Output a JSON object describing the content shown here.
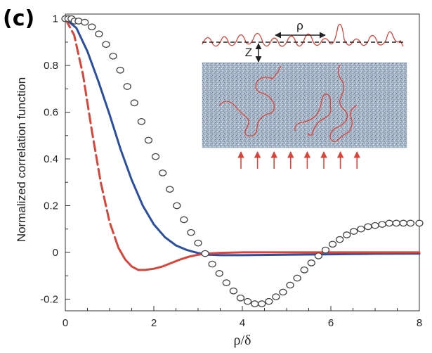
{
  "panel_label": "(c)",
  "chart_data": {
    "type": "line",
    "title": "",
    "xlabel": "ρ/δ",
    "ylabel": "Normalized correlation function",
    "xlim": [
      0,
      8
    ],
    "ylim": [
      -0.25,
      1.02
    ],
    "x_ticks": [
      0,
      2,
      4,
      6,
      8
    ],
    "x_tick_labels": [
      "0",
      "2",
      "4",
      "6",
      "8"
    ],
    "y_ticks": [
      -0.2,
      0,
      0.2,
      0.4,
      0.6,
      0.8,
      1
    ],
    "y_tick_labels": [
      "-0.2",
      "0",
      "0.2",
      "0.4",
      "0.6",
      "0.8",
      "1"
    ],
    "grid": false,
    "series": [
      {
        "name": "blue solid",
        "style": "solid",
        "color": "#2a4fa0",
        "x": [
          0,
          0.25,
          0.5,
          0.75,
          1.0,
          1.25,
          1.5,
          1.75,
          2.0,
          2.25,
          2.5,
          2.75,
          3.0,
          3.25,
          3.5,
          4,
          5,
          6,
          7,
          8
        ],
        "y": [
          1.0,
          0.96,
          0.86,
          0.73,
          0.59,
          0.44,
          0.31,
          0.2,
          0.12,
          0.065,
          0.03,
          0.01,
          -0.003,
          -0.01,
          -0.012,
          -0.012,
          -0.01,
          -0.008,
          -0.006,
          -0.005
        ]
      },
      {
        "name": "red dashed",
        "style": "dashed",
        "color": "#d9443a",
        "x": [
          0,
          0.2,
          0.4,
          0.6,
          0.8,
          1.0,
          1.2
        ],
        "y": [
          1.0,
          0.93,
          0.76,
          0.52,
          0.3,
          0.13,
          0.02
        ]
      },
      {
        "name": "red solid",
        "style": "solid",
        "color": "#d9443a",
        "x": [
          1.2,
          1.35,
          1.5,
          1.65,
          1.8,
          2.0,
          2.2,
          2.4,
          2.6,
          2.8,
          3.0,
          3.2,
          3.5,
          4,
          5,
          6,
          7,
          8
        ],
        "y": [
          0.02,
          -0.03,
          -0.06,
          -0.075,
          -0.075,
          -0.07,
          -0.06,
          -0.045,
          -0.03,
          -0.018,
          -0.01,
          -0.005,
          -0.002,
          0.0,
          0.0,
          0.0,
          0.0,
          0.0
        ]
      },
      {
        "name": "open circles",
        "style": "markers",
        "color": "#444444",
        "x": [
          0,
          0.07,
          0.14,
          0.21,
          0.3,
          0.44,
          0.6,
          0.76,
          0.92,
          1.08,
          1.24,
          1.4,
          1.56,
          1.72,
          1.88,
          2.04,
          2.2,
          2.36,
          2.52,
          2.68,
          2.84,
          3.0,
          3.16,
          3.32,
          3.48,
          3.64,
          3.8,
          3.96,
          4.12,
          4.28,
          4.44,
          4.6,
          4.76,
          4.92,
          5.08,
          5.24,
          5.4,
          5.56,
          5.72,
          5.88,
          6.04,
          6.2,
          6.36,
          6.52,
          6.68,
          6.84,
          7.0,
          7.16,
          7.32,
          7.48,
          7.64,
          7.8,
          8.0
        ],
        "y": [
          1.0,
          1.0,
          1.0,
          0.99,
          0.99,
          0.985,
          0.965,
          0.935,
          0.89,
          0.84,
          0.78,
          0.71,
          0.64,
          0.56,
          0.48,
          0.41,
          0.34,
          0.27,
          0.2,
          0.14,
          0.085,
          0.04,
          -0.005,
          -0.05,
          -0.09,
          -0.13,
          -0.165,
          -0.195,
          -0.21,
          -0.22,
          -0.22,
          -0.21,
          -0.19,
          -0.17,
          -0.14,
          -0.11,
          -0.075,
          -0.045,
          -0.015,
          0.01,
          0.035,
          0.055,
          0.075,
          0.09,
          0.1,
          0.11,
          0.115,
          0.12,
          0.125,
          0.125,
          0.125,
          0.125,
          0.125
        ]
      }
    ],
    "inset": {
      "labels": {
        "rho": "ρ",
        "z": "Z"
      },
      "surface_color": "#d9443a",
      "medium_color": "#a7b7c8",
      "arrow_color": "#d9443a",
      "arrow_count": 8
    }
  }
}
